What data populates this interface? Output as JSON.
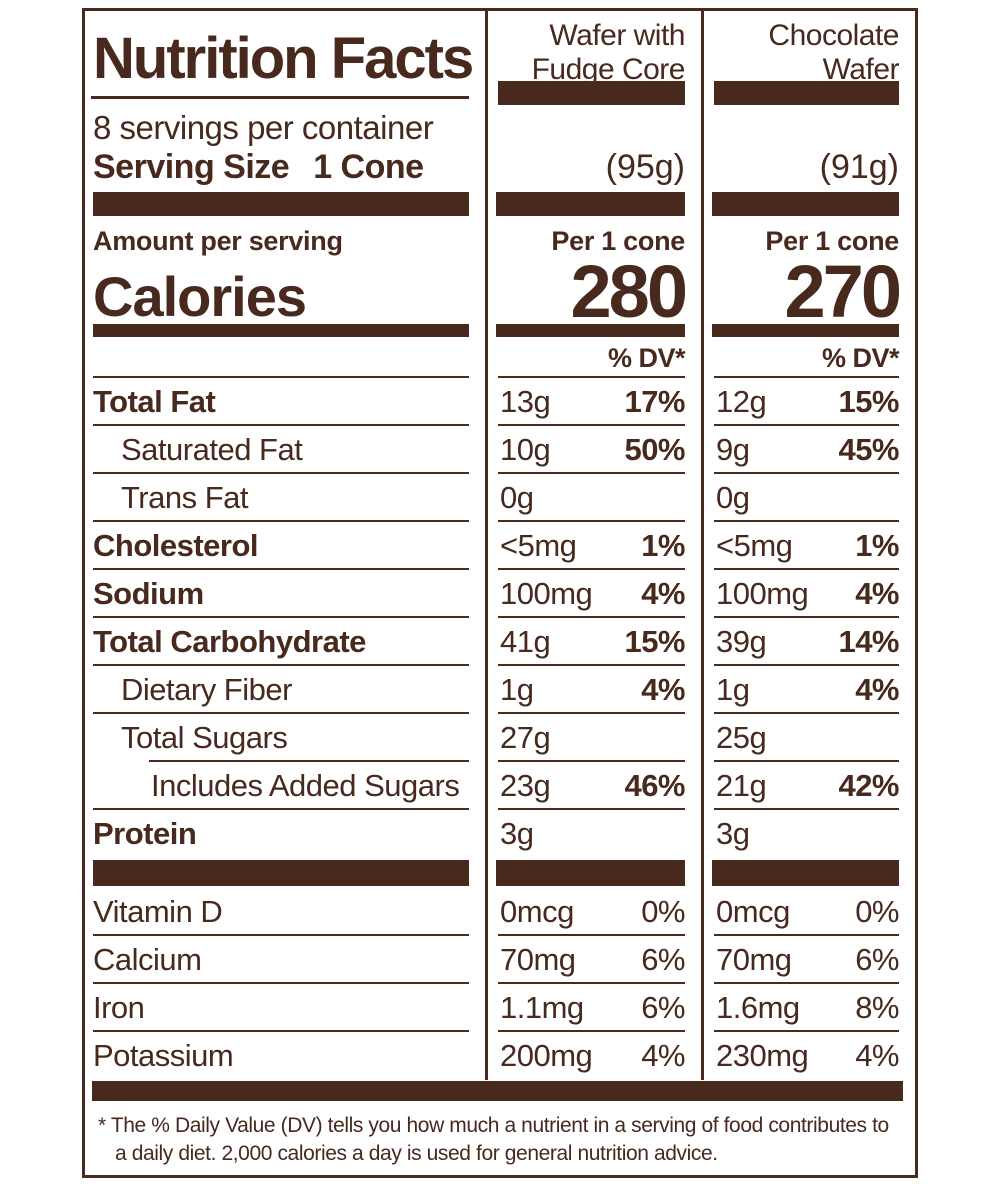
{
  "colors": {
    "brown": "#47291e"
  },
  "header": {
    "title": "Nutrition Facts",
    "servings_per_container": "8 servings per container",
    "serving_size_label": "Serving Size",
    "serving_size_value": "1 Cone"
  },
  "columns": {
    "col1": {
      "name_line1": "Wafer with",
      "name_line2": "Fudge Core",
      "serving_weight": "(95g)",
      "per_serving": "Per 1 cone",
      "calories": "280"
    },
    "col2": {
      "name_line1": "Chocolate",
      "name_line2": "Wafer",
      "serving_weight": "(91g)",
      "per_serving": "Per 1 cone",
      "calories": "270"
    }
  },
  "calories_section": {
    "amount_per_serving": "Amount per serving",
    "calories_label": "Calories"
  },
  "dv_header": "% DV*",
  "rows": [
    {
      "name": "Total Fat",
      "c1": {
        "amount": "13g",
        "dv": "17%"
      },
      "c2": {
        "amount": "12g",
        "dv": "15%"
      }
    },
    {
      "name": "Saturated Fat",
      "c1": {
        "amount": "10g",
        "dv": "50%"
      },
      "c2": {
        "amount": "9g",
        "dv": "45%"
      }
    },
    {
      "name": "Trans Fat",
      "c1": {
        "amount": "0g",
        "dv": ""
      },
      "c2": {
        "amount": "0g",
        "dv": ""
      }
    },
    {
      "name": "Cholesterol",
      "c1": {
        "amount": "<5mg",
        "dv": "1%"
      },
      "c2": {
        "amount": "<5mg",
        "dv": "1%"
      }
    },
    {
      "name": "Sodium",
      "c1": {
        "amount": "100mg",
        "dv": "4%"
      },
      "c2": {
        "amount": "100mg",
        "dv": "4%"
      }
    },
    {
      "name": "Total Carbohydrate",
      "c1": {
        "amount": "41g",
        "dv": "15%"
      },
      "c2": {
        "amount": "39g",
        "dv": "14%"
      }
    },
    {
      "name": "Dietary Fiber",
      "c1": {
        "amount": "1g",
        "dv": "4%"
      },
      "c2": {
        "amount": "1g",
        "dv": "4%"
      }
    },
    {
      "name": "Total Sugars",
      "c1": {
        "amount": "27g",
        "dv": ""
      },
      "c2": {
        "amount": "25g",
        "dv": ""
      }
    },
    {
      "name": "Includes Added Sugars",
      "c1": {
        "amount": "23g",
        "dv": "46%"
      },
      "c2": {
        "amount": "21g",
        "dv": "42%"
      }
    },
    {
      "name": "Protein",
      "c1": {
        "amount": "3g",
        "dv": ""
      },
      "c2": {
        "amount": "3g",
        "dv": ""
      }
    },
    {
      "name": "Vitamin D",
      "c1": {
        "amount": "0mcg",
        "dv": "0%"
      },
      "c2": {
        "amount": "0mcg",
        "dv": "0%"
      }
    },
    {
      "name": "Calcium",
      "c1": {
        "amount": "70mg",
        "dv": "6%"
      },
      "c2": {
        "amount": "70mg",
        "dv": "6%"
      }
    },
    {
      "name": "Iron",
      "c1": {
        "amount": "1.1mg",
        "dv": "6%"
      },
      "c2": {
        "amount": "1.6mg",
        "dv": "8%"
      }
    },
    {
      "name": "Potassium",
      "c1": {
        "amount": "200mg",
        "dv": "4%"
      },
      "c2": {
        "amount": "230mg",
        "dv": "4%"
      }
    }
  ],
  "footnote": {
    "line1": "* The % Daily Value (DV) tells you how much a nutrient in a serving of food contributes to",
    "line2": "a daily diet. 2,000 calories a day is used for general nutrition advice."
  }
}
